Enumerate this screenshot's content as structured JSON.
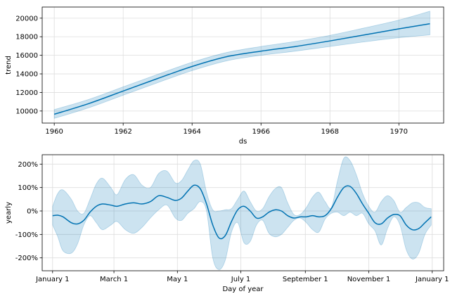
{
  "chart_data": [
    {
      "type": "line",
      "xlabel": "ds",
      "ylabel": "trend",
      "xlim": [
        1959.65,
        1971.3
      ],
      "ylim": [
        8700,
        21200
      ],
      "xticks": [
        1960,
        1962,
        1964,
        1966,
        1968,
        1970
      ],
      "xtick_labels": [
        "1960",
        "1962",
        "1964",
        "1966",
        "1968",
        "1970"
      ],
      "yticks": [
        10000,
        12000,
        14000,
        16000,
        18000,
        20000
      ],
      "ytick_labels": [
        "10000",
        "12000",
        "14000",
        "16000",
        "18000",
        "20000"
      ],
      "grid": true,
      "line_color": "#0072b2",
      "band_color": "#0072b2",
      "series": [
        {
          "x": [
            1960,
            1961,
            1962,
            1963,
            1964,
            1965,
            1966,
            1967,
            1968,
            1969,
            1970,
            1970.9
          ],
          "values": [
            9650,
            10800,
            12150,
            13500,
            14800,
            15850,
            16450,
            16950,
            17550,
            18200,
            18850,
            19400
          ],
          "lower": [
            9200,
            10350,
            11700,
            13050,
            14350,
            15400,
            16000,
            16450,
            16950,
            17450,
            17900,
            18200
          ],
          "upper": [
            10150,
            11250,
            12600,
            13950,
            15250,
            16300,
            16950,
            17500,
            18150,
            18950,
            19800,
            20750
          ]
        }
      ]
    },
    {
      "type": "line",
      "xlabel": "Day of year",
      "ylabel": "yearly",
      "xlim": [
        -10,
        376
      ],
      "ylim": [
        -255,
        240
      ],
      "xticks": [
        0,
        59,
        120,
        181,
        243,
        304,
        365
      ],
      "xtick_labels": [
        "January 1",
        "March 1",
        "May 1",
        "July 1",
        "September 1",
        "November 1",
        "January 1"
      ],
      "yticks": [
        -200,
        -100,
        0,
        100,
        200
      ],
      "ytick_labels": [
        "-200%",
        "-100%",
        "0%",
        "100%",
        "200%"
      ],
      "grid": true,
      "line_color": "#0072b2",
      "band_color": "#0072b2",
      "series": [
        {
          "x": [
            0,
            5,
            10,
            18,
            24,
            30,
            36,
            42,
            48,
            56,
            62,
            70,
            78,
            86,
            94,
            102,
            110,
            118,
            124,
            130,
            136,
            142,
            148,
            154,
            160,
            166,
            172,
            178,
            184,
            190,
            196,
            202,
            208,
            214,
            220,
            226,
            232,
            238,
            244,
            250,
            256,
            262,
            268,
            274,
            280,
            286,
            292,
            298,
            304,
            310,
            316,
            322,
            328,
            334,
            340,
            346,
            352,
            358,
            364
          ],
          "values": [
            -20,
            -18,
            -25,
            -50,
            -55,
            -40,
            -5,
            20,
            30,
            25,
            20,
            30,
            35,
            30,
            40,
            65,
            58,
            45,
            55,
            85,
            110,
            95,
            30,
            -60,
            -115,
            -105,
            -45,
            5,
            20,
            0,
            -30,
            -25,
            -5,
            5,
            0,
            -20,
            -30,
            -25,
            -25,
            -20,
            -25,
            -20,
            10,
            60,
            100,
            105,
            75,
            30,
            -10,
            -50,
            -55,
            -30,
            -15,
            -20,
            -60,
            -80,
            -75,
            -50,
            -25
          ],
          "lower": [
            -60,
            -110,
            -170,
            -180,
            -140,
            -60,
            -20,
            -50,
            -80,
            -60,
            -45,
            -80,
            -95,
            -70,
            -30,
            5,
            25,
            -30,
            -40,
            -10,
            10,
            40,
            0,
            -200,
            -250,
            -210,
            -90,
            -50,
            -135,
            -130,
            -60,
            -40,
            -95,
            -110,
            -100,
            -70,
            -40,
            -30,
            -50,
            -80,
            -90,
            -35,
            -10,
            -5,
            -20,
            -5,
            -20,
            -10,
            -55,
            -85,
            -145,
            -75,
            -25,
            -60,
            -165,
            -205,
            -180,
            -100,
            -60
          ],
          "upper": [
            20,
            75,
            90,
            50,
            0,
            -10,
            50,
            115,
            140,
            100,
            70,
            135,
            155,
            110,
            100,
            160,
            170,
            120,
            130,
            175,
            215,
            200,
            80,
            5,
            0,
            5,
            10,
            50,
            85,
            40,
            0,
            10,
            60,
            95,
            100,
            35,
            -15,
            -15,
            15,
            60,
            80,
            40,
            15,
            130,
            225,
            215,
            155,
            75,
            20,
            -5,
            40,
            65,
            45,
            -5,
            15,
            35,
            35,
            15,
            10
          ]
        }
      ]
    }
  ]
}
